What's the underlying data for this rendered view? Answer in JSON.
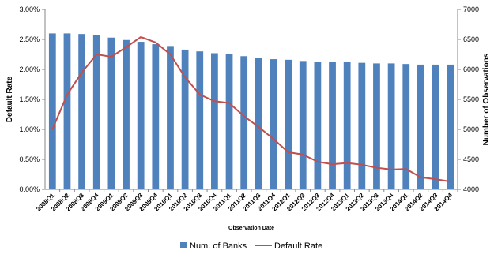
{
  "chart_data": {
    "type": "bar",
    "categories": [
      "2008Q1",
      "2008Q2",
      "2008Q3",
      "2008Q4",
      "2009Q1",
      "2009Q2",
      "2009Q3",
      "2009Q4",
      "2010Q1",
      "2010Q2",
      "2010Q3",
      "2010Q4",
      "2011Q1",
      "2011Q2",
      "2011Q3",
      "2011Q4",
      "2012Q1",
      "2012Q2",
      "2012Q3",
      "2012Q4",
      "2013Q1",
      "2013Q2",
      "2013Q3",
      "2013Q4",
      "2014Q1",
      "2014Q2",
      "2014Q3",
      "2014Q4"
    ],
    "series": [
      {
        "name": "Num. of Banks",
        "type": "bar",
        "axis": "right",
        "color": "#4f81bd",
        "values": [
          6600,
          6600,
          6590,
          6570,
          6530,
          6490,
          6460,
          6420,
          6390,
          6330,
          6300,
          6270,
          6250,
          6220,
          6190,
          6170,
          6160,
          6140,
          6130,
          6120,
          6120,
          6110,
          6100,
          6100,
          6090,
          6080,
          6080,
          6080
        ]
      },
      {
        "name": "Default Rate",
        "type": "line",
        "axis": "left",
        "color": "#c0504d",
        "values": [
          0.01,
          0.0158,
          0.0195,
          0.0225,
          0.0221,
          0.0237,
          0.0254,
          0.0245,
          0.0225,
          0.0187,
          0.0158,
          0.0147,
          0.0144,
          0.0122,
          0.0104,
          0.0084,
          0.0062,
          0.0058,
          0.0046,
          0.0042,
          0.0044,
          0.0041,
          0.0036,
          0.0033,
          0.0034,
          0.002,
          0.0017,
          0.0013
        ]
      }
    ],
    "xlabel": "Observation Date",
    "ylabel": "Default Rate",
    "y2label": "Number of Observations",
    "ylim": [
      0,
      0.03
    ],
    "y2lim": [
      4000,
      7000
    ],
    "yticks": [
      "0.00%",
      "0.50%",
      "1.00%",
      "1.50%",
      "2.00%",
      "2.50%",
      "3.00%"
    ],
    "y2ticks": [
      "4000",
      "4500",
      "5000",
      "5500",
      "6000",
      "6500",
      "7000"
    ],
    "grid": false,
    "legend": "bottom"
  }
}
